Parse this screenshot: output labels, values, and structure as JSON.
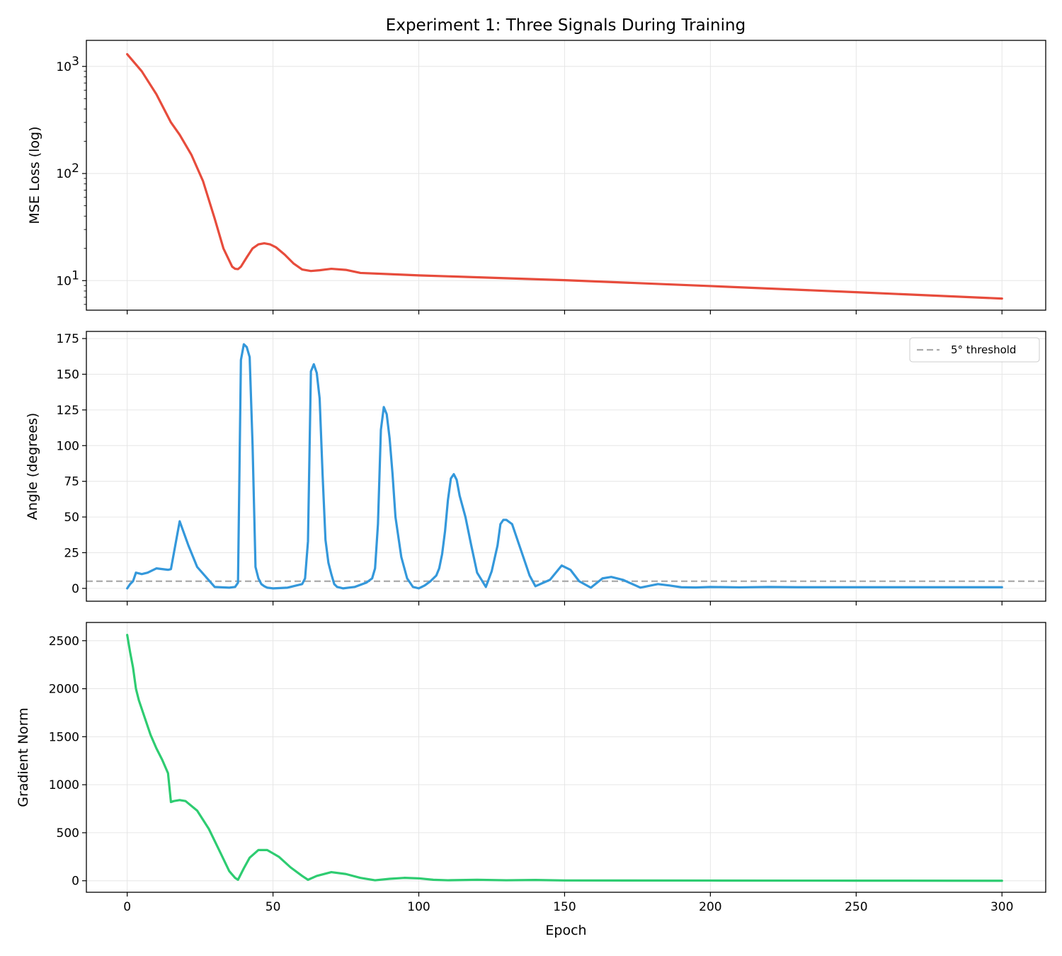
{
  "figure": {
    "title": "Experiment 1: Three Signals During Training"
  },
  "chart_data": [
    {
      "type": "line",
      "panel": "top",
      "title": "Experiment 1: Three Signals During Training",
      "xlabel": "",
      "ylabel": "MSE Loss (log)",
      "yscale": "log",
      "xlim": [
        -14,
        315
      ],
      "ylim": [
        5.3,
        1750
      ],
      "grid": true,
      "xticks": [
        0,
        50,
        100,
        150,
        200,
        250,
        300
      ],
      "yticks": [
        {
          "value": 10,
          "base": "10",
          "exp": "1"
        },
        {
          "value": 100,
          "base": "10",
          "exp": "2"
        },
        {
          "value": 1000,
          "base": "10",
          "exp": "3"
        }
      ],
      "series": [
        {
          "color": "#e74c3c",
          "x": [
            0,
            5,
            10,
            15,
            18,
            22,
            26,
            30,
            33,
            36,
            37,
            38,
            39,
            41,
            43,
            45,
            47,
            49,
            51,
            54,
            57,
            60,
            63,
            66,
            70,
            75,
            80,
            90,
            100,
            150,
            200,
            250,
            300
          ],
          "y": [
            1300,
            900,
            550,
            300,
            230,
            150,
            85,
            38,
            20,
            13.5,
            12.9,
            12.8,
            13.5,
            16.5,
            20,
            21.8,
            22.3,
            21.8,
            20.5,
            17.5,
            14.5,
            12.7,
            12.3,
            12.5,
            12.9,
            12.6,
            11.8,
            11.5,
            11.2,
            10.1,
            8.9,
            7.8,
            6.8
          ]
        }
      ]
    },
    {
      "type": "line",
      "panel": "middle",
      "xlabel": "",
      "ylabel": "Angle (degrees)",
      "xlim": [
        -14,
        315
      ],
      "ylim": [
        -9,
        180
      ],
      "grid": true,
      "xticks": [
        0,
        50,
        100,
        150,
        200,
        250,
        300
      ],
      "yticks": [
        0,
        25,
        50,
        75,
        100,
        125,
        150,
        175
      ],
      "legend": {
        "position": "top-right",
        "entries": [
          "5° threshold"
        ]
      },
      "threshold": {
        "value": 5,
        "label": "5° threshold",
        "color": "#aaaaaa",
        "style": "dashed"
      },
      "series": [
        {
          "color": "#3498db",
          "x": [
            0,
            1,
            2,
            3,
            4,
            5,
            6,
            7,
            8,
            10,
            12,
            14,
            15,
            18,
            21,
            24,
            30,
            35,
            37,
            38,
            39,
            40,
            41,
            42,
            43,
            44,
            45,
            46,
            47,
            48,
            50,
            55,
            60,
            61,
            62,
            63,
            64,
            65,
            66,
            67,
            68,
            69,
            70,
            71,
            72,
            74,
            78,
            82,
            84,
            85,
            86,
            87,
            88,
            89,
            90,
            91,
            92,
            94,
            96,
            98,
            100,
            102,
            104,
            106,
            107,
            108,
            109,
            110,
            111,
            112,
            113,
            114,
            116,
            118,
            120,
            123,
            125,
            127,
            128,
            129,
            130,
            132,
            134,
            136,
            138,
            140,
            145,
            149,
            152,
            155,
            159,
            163,
            166,
            170,
            176,
            182,
            186,
            190,
            195,
            200,
            210,
            220,
            230,
            250,
            270,
            300
          ],
          "y": [
            0,
            3,
            5,
            11,
            10.5,
            10,
            10.5,
            11,
            12,
            14,
            13.5,
            13,
            13.5,
            47,
            30,
            15,
            1,
            0.5,
            1,
            4,
            160,
            171,
            169,
            162,
            100,
            15,
            7,
            3,
            1.5,
            0.5,
            0,
            0.5,
            3,
            7,
            33,
            152,
            157,
            151,
            133,
            80,
            34,
            18,
            10,
            3,
            1,
            0,
            1,
            4,
            7,
            14,
            45,
            111,
            127,
            122,
            105,
            80,
            50,
            22,
            7,
            1,
            0,
            2,
            5,
            9,
            14,
            24,
            40,
            62,
            77,
            80,
            76,
            65,
            50,
            30,
            11,
            1,
            12,
            30,
            45,
            48,
            48,
            45,
            33,
            21,
            9,
            1.5,
            6,
            16,
            13,
            5,
            0.5,
            7,
            8,
            6,
            0.5,
            3,
            2,
            0.8,
            0.6,
            1,
            0.7,
            1,
            0.8,
            0.8,
            0.8,
            0.8
          ]
        }
      ]
    },
    {
      "type": "line",
      "panel": "bottom",
      "xlabel": "Epoch",
      "ylabel": "Gradient Norm",
      "xlim": [
        -14,
        315
      ],
      "ylim": [
        -120,
        2690
      ],
      "grid": true,
      "xticks": [
        0,
        50,
        100,
        150,
        200,
        250,
        300
      ],
      "yticks": [
        0,
        500,
        1000,
        1500,
        2000,
        2500
      ],
      "series": [
        {
          "color": "#2ecc71",
          "x": [
            0,
            1,
            2,
            3,
            4,
            6,
            8,
            10,
            12,
            14,
            15,
            16,
            18,
            20,
            24,
            28,
            32,
            35,
            37,
            38,
            40,
            42,
            45,
            48,
            52,
            56,
            60,
            62,
            65,
            70,
            75,
            80,
            85,
            90,
            95,
            100,
            105,
            110,
            120,
            130,
            140,
            150,
            200,
            250,
            300
          ],
          "y": [
            2560,
            2380,
            2220,
            2000,
            1880,
            1700,
            1520,
            1380,
            1260,
            1120,
            820,
            830,
            840,
            830,
            730,
            540,
            290,
            100,
            30,
            10,
            130,
            240,
            320,
            320,
            250,
            140,
            50,
            10,
            50,
            90,
            70,
            30,
            5,
            20,
            30,
            25,
            10,
            5,
            10,
            5,
            8,
            3,
            2,
            1,
            0
          ]
        }
      ]
    }
  ]
}
